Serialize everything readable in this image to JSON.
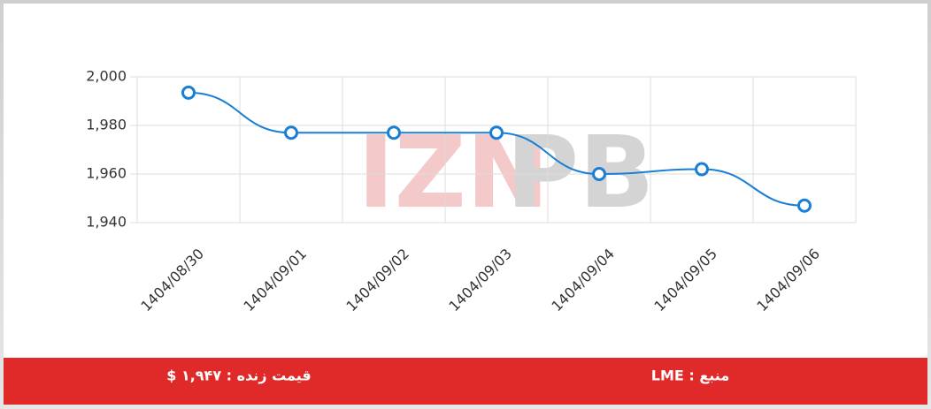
{
  "chart_data": {
    "type": "line",
    "categories": [
      "1404/08/30",
      "1404/09/01",
      "1404/09/02",
      "1404/09/03",
      "1404/09/04",
      "1404/09/05",
      "1404/09/06"
    ],
    "series": [
      {
        "name": "LME",
        "color": "#1a7fd4",
        "values": [
          1993.5,
          1977,
          1977,
          1977,
          1960,
          1962,
          1947
        ]
      }
    ],
    "ylim": [
      1940,
      2000
    ],
    "yticks": [
      {
        "value": 1940,
        "label": "1,940"
      },
      {
        "value": 1960,
        "label": "1,960"
      },
      {
        "value": 1980,
        "label": "1,980"
      },
      {
        "value": 2000,
        "label": "2,000"
      }
    ],
    "grid": true
  },
  "watermark": [
    "IZN",
    "PB"
  ],
  "footer": {
    "price": "قیمت زنده : ۱,۹۴۷ $",
    "source": "منبع : LME"
  }
}
